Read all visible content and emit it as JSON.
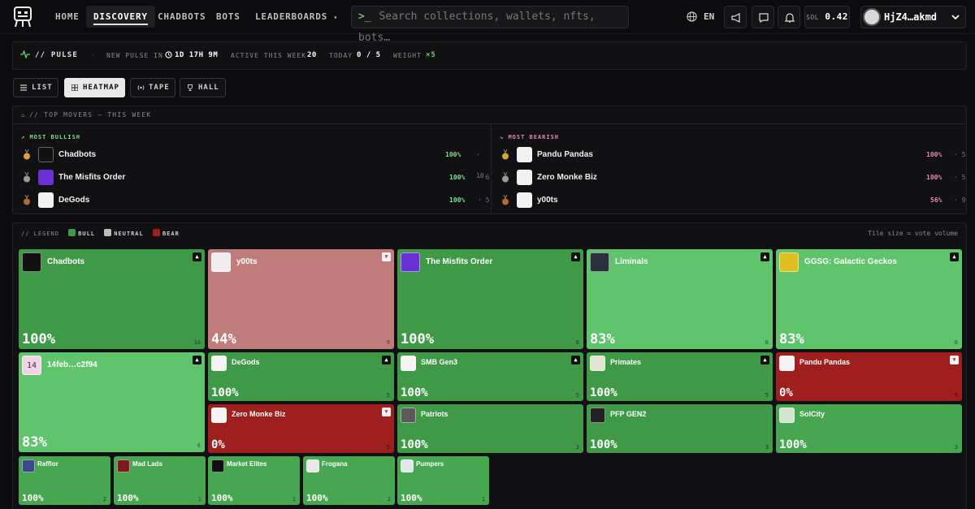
{
  "colors": {
    "bull_dark": "#3f9a48",
    "bull_mid": "#47a650",
    "bull_light": "#5fc46c",
    "bear": "#9e1f1d",
    "bear_light": "#c07c7a",
    "neutral": "#bdbdbd"
  },
  "nav": {
    "links": [
      "HOME",
      "DISCOVERY",
      "CHADBOTS",
      "BOTS",
      "LEADERBOARDS"
    ],
    "active": "DISCOVERY",
    "search_placeholder": "Search collections, wallets, nfts, bots…",
    "search_prompt": ">_",
    "lang": "EN",
    "sol_label": "SOL",
    "sol_value": "0.42",
    "account": "HjZ4…akmd"
  },
  "pulse": {
    "title": "// PULSE",
    "new_pulse_label": "NEW PULSE IN",
    "new_pulse_value": "1D 17H 9M",
    "active_label": "ACTIVE THIS WEEK",
    "active_value": "20",
    "today_label": "TODAY",
    "today_value": "0 / 5",
    "weight_label": "WEIGHT",
    "weight_value": "×5"
  },
  "view_tabs": [
    "LIST",
    "HEATMAP",
    "TAPE",
    "HALL"
  ],
  "active_view": "HEATMAP",
  "movers": {
    "title": "// TOP MOVERS — THIS WEEK",
    "bullish_label": "MOST BULLISH",
    "bearish_label": "MOST BEARISH",
    "bullish": [
      {
        "name": "Chadbots",
        "pct": "100%",
        "count": "10"
      },
      {
        "name": "The Misfits Order",
        "pct": "100%",
        "count": "6"
      },
      {
        "name": "DeGods",
        "pct": "100%",
        "count": "5"
      }
    ],
    "bearish": [
      {
        "name": "Pandu Pandas",
        "pct": "100%",
        "count": "5"
      },
      {
        "name": "Zero Monke Biz",
        "pct": "100%",
        "count": "5"
      },
      {
        "name": "y00ts",
        "pct": "56%",
        "count": "9"
      }
    ]
  },
  "heatmap": {
    "legend_label": "// LEGEND",
    "legend": [
      "BULL",
      "NEUTRAL",
      "BEAR"
    ],
    "tile_note": "Tile size = vote volume",
    "tiles": [
      {
        "name": "Chadbots",
        "pct": "100%",
        "count": "10",
        "dir": "up",
        "color": "#3f9a48",
        "thumb": "#111"
      },
      {
        "name": "y00ts",
        "pct": "44%",
        "count": "9",
        "dir": "dn",
        "color": "#c07c7a",
        "thumb": "#eee"
      },
      {
        "name": "The Misfits Order",
        "pct": "100%",
        "count": "6",
        "dir": "up",
        "color": "#3f9a48",
        "thumb": "#6b2fd6"
      },
      {
        "name": "Liminals",
        "pct": "83%",
        "count": "6",
        "dir": "up",
        "color": "#5fc46c",
        "thumb": "#2a2f3a"
      },
      {
        "name": "GGSG: Galactic Geckos",
        "pct": "83%",
        "count": "6",
        "dir": "up",
        "color": "#5fc46c",
        "thumb": "#e0c020"
      },
      {
        "name": "14feb…c2f94",
        "pct": "83%",
        "count": "6",
        "dir": "up",
        "color": "#5fc46c",
        "thumb": "#f2d4e6",
        "thumb_text": "14"
      },
      {
        "name": "DeGods",
        "pct": "100%",
        "count": "5",
        "dir": "up",
        "color": "#3f9a48",
        "thumb": "#f4f4f4"
      },
      {
        "name": "SMB Gen3",
        "pct": "100%",
        "count": "5",
        "dir": "up",
        "color": "#3f9a48",
        "thumb": "#f4f4f4"
      },
      {
        "name": "Primates",
        "pct": "100%",
        "count": "5",
        "dir": "up",
        "color": "#3f9a48",
        "thumb": "#dfe6d0"
      },
      {
        "name": "Pandu Pandas",
        "pct": "0%",
        "count": "5",
        "dir": "dn",
        "color": "#9e1f1d",
        "thumb": "#f4f4f4"
      },
      {
        "name": "Zero Monke Biz",
        "pct": "0%",
        "count": "5",
        "dir": "dn",
        "color": "#9e1f1d",
        "thumb": "#f4f4f4"
      },
      {
        "name": "Patriots",
        "pct": "100%",
        "count": "3",
        "dir": "",
        "color": "#3f9a48",
        "thumb": "#5a5a5a"
      },
      {
        "name": "PFP GEN2",
        "pct": "100%",
        "count": "3",
        "dir": "",
        "color": "#3f9a48",
        "thumb": "#222"
      },
      {
        "name": "SolCity",
        "pct": "100%",
        "count": "3",
        "dir": "",
        "color": "#47a650",
        "thumb": "#d2e4d0"
      },
      {
        "name": "Rafflor",
        "pct": "100%",
        "count": "2",
        "dir": "",
        "color": "#47a650",
        "thumb": "#3b4a8a"
      },
      {
        "name": "Mad Lads",
        "pct": "100%",
        "count": "1",
        "dir": "",
        "color": "#47a650",
        "thumb": "#7a1c1c"
      },
      {
        "name": "Market Elites",
        "pct": "100%",
        "count": "1",
        "dir": "",
        "color": "#47a650",
        "thumb": "#111"
      },
      {
        "name": "Frogana",
        "pct": "100%",
        "count": "1",
        "dir": "",
        "color": "#47a650",
        "thumb": "#e8e8e8"
      },
      {
        "name": "Pumpers",
        "pct": "100%",
        "count": "1",
        "dir": "",
        "color": "#47a650",
        "thumb": "#dfe9ea"
      }
    ]
  }
}
